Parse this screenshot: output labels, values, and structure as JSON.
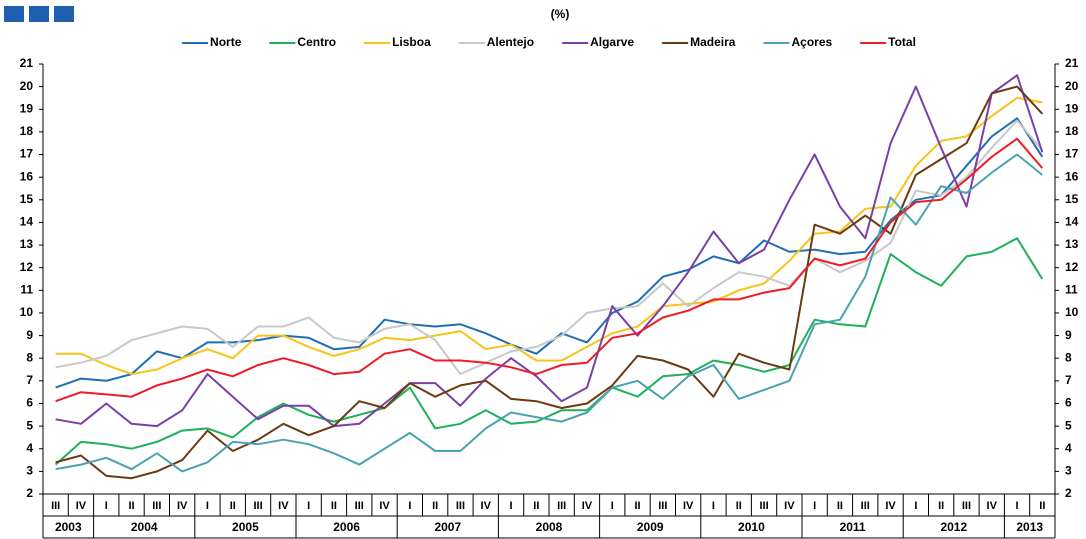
{
  "chart_data": {
    "type": "line",
    "subtitle": "(%)",
    "categories": [
      "III",
      "IV",
      "I",
      "II",
      "III",
      "IV",
      "I",
      "II",
      "III",
      "IV",
      "I",
      "II",
      "III",
      "IV",
      "I",
      "II",
      "III",
      "IV",
      "I",
      "II",
      "III",
      "IV",
      "I",
      "II",
      "III",
      "IV",
      "I",
      "II",
      "III",
      "IV",
      "I",
      "II",
      "III",
      "IV",
      "I",
      "II",
      "III",
      "IV",
      "I",
      "II"
    ],
    "x_groups": [
      "2003",
      "2004",
      "2005",
      "2006",
      "2007",
      "2008",
      "2009",
      "2010",
      "2011",
      "2012",
      "2013"
    ],
    "ylim": [
      2,
      21
    ],
    "yticks": [
      2,
      3,
      4,
      5,
      6,
      7,
      8,
      9,
      10,
      11,
      12,
      13,
      14,
      15,
      16,
      17,
      18,
      19,
      20,
      21
    ],
    "grid": false,
    "legend": "top",
    "series": [
      {
        "name": "Norte",
        "color": "#1f6fb5",
        "values": [
          6.7,
          7.1,
          7.0,
          7.3,
          8.3,
          8.0,
          8.7,
          8.7,
          8.8,
          9.0,
          8.9,
          8.4,
          8.5,
          9.7,
          9.5,
          9.4,
          9.5,
          9.1,
          8.6,
          8.2,
          9.1,
          8.7,
          10.0,
          10.5,
          11.6,
          11.9,
          12.5,
          12.2,
          13.2,
          12.7,
          12.8,
          12.6,
          12.7,
          14.1,
          15.0,
          15.2,
          16.5,
          17.8,
          18.6,
          16.9
        ]
      },
      {
        "name": "Centro",
        "color": "#1eb05a",
        "values": [
          3.3,
          4.3,
          4.2,
          4.0,
          4.3,
          4.8,
          4.9,
          4.5,
          5.4,
          6.0,
          5.5,
          5.2,
          5.5,
          5.8,
          6.7,
          4.9,
          5.1,
          5.7,
          5.1,
          5.2,
          5.7,
          5.7,
          6.7,
          6.3,
          7.2,
          7.3,
          7.9,
          7.7,
          7.4,
          7.7,
          9.7,
          9.5,
          9.4,
          12.6,
          11.8,
          11.2,
          12.5,
          12.7,
          13.3,
          11.5
        ]
      },
      {
        "name": "Lisboa",
        "color": "#f8c31a",
        "values": [
          8.2,
          8.2,
          7.7,
          7.3,
          7.5,
          8.0,
          8.4,
          8.0,
          9.0,
          9.0,
          8.5,
          8.1,
          8.4,
          8.9,
          8.8,
          9.0,
          9.2,
          8.4,
          8.6,
          7.9,
          7.9,
          8.5,
          9.1,
          9.4,
          10.3,
          10.4,
          10.5,
          11.0,
          11.3,
          12.3,
          13.5,
          13.6,
          14.6,
          14.7,
          16.5,
          17.6,
          17.8,
          18.7,
          19.5,
          19.3
        ]
      },
      {
        "name": "Alentejo",
        "color": "#c8c8c8",
        "values": [
          7.6,
          7.8,
          8.1,
          8.8,
          9.1,
          9.4,
          9.3,
          8.5,
          9.4,
          9.4,
          9.8,
          8.9,
          8.7,
          9.3,
          9.5,
          8.8,
          7.3,
          7.8,
          8.3,
          8.5,
          9.0,
          10.0,
          10.2,
          10.3,
          11.3,
          10.3,
          11.1,
          11.8,
          11.6,
          11.2,
          12.4,
          11.8,
          12.3,
          13.1,
          15.4,
          15.2,
          16.0,
          17.3,
          18.5,
          17.2
        ]
      },
      {
        "name": "Algarve",
        "color": "#7a3fa8",
        "values": [
          5.3,
          5.1,
          6.0,
          5.1,
          5.0,
          5.7,
          7.3,
          6.3,
          5.3,
          5.9,
          5.9,
          5.0,
          5.1,
          6.0,
          6.9,
          6.9,
          5.9,
          7.1,
          8.0,
          7.2,
          6.1,
          6.7,
          10.3,
          9.0,
          10.3,
          11.8,
          13.6,
          12.2,
          12.8,
          15.0,
          17.0,
          14.7,
          13.3,
          17.5,
          20.0,
          17.3,
          14.7,
          19.7,
          20.5,
          17.1
        ]
      },
      {
        "name": "Madeira",
        "color": "#6b3a12",
        "values": [
          3.4,
          3.7,
          2.8,
          2.7,
          3.0,
          3.5,
          4.8,
          3.9,
          4.4,
          5.1,
          4.6,
          5.0,
          6.1,
          5.8,
          6.9,
          6.3,
          6.8,
          7.0,
          6.2,
          6.1,
          5.8,
          6.0,
          6.8,
          8.1,
          7.9,
          7.5,
          6.3,
          8.2,
          7.8,
          7.5,
          13.9,
          13.5,
          14.3,
          13.5,
          16.1,
          16.8,
          17.5,
          19.7,
          20.0,
          18.8
        ]
      },
      {
        "name": "Açores",
        "color": "#4aa3b0",
        "values": [
          3.1,
          3.3,
          3.6,
          3.1,
          3.8,
          3.0,
          3.4,
          4.3,
          4.2,
          4.4,
          4.2,
          3.8,
          3.3,
          4.0,
          4.7,
          3.9,
          3.9,
          4.9,
          5.6,
          5.4,
          5.2,
          5.6,
          6.7,
          7.0,
          6.2,
          7.2,
          7.7,
          6.2,
          6.6,
          7.0,
          9.5,
          9.7,
          11.6,
          15.1,
          13.9,
          15.6,
          15.3,
          16.2,
          17.0,
          16.1
        ]
      },
      {
        "name": "Total",
        "color": "#ee1c25",
        "values": [
          6.1,
          6.5,
          6.4,
          6.3,
          6.8,
          7.1,
          7.5,
          7.2,
          7.7,
          8.0,
          7.7,
          7.3,
          7.4,
          8.2,
          8.4,
          7.9,
          7.9,
          7.8,
          7.6,
          7.3,
          7.7,
          7.8,
          8.9,
          9.1,
          9.8,
          10.1,
          10.6,
          10.6,
          10.9,
          11.1,
          12.4,
          12.1,
          12.4,
          14.0,
          14.9,
          15.0,
          15.9,
          16.9,
          17.7,
          16.4
        ]
      }
    ]
  }
}
